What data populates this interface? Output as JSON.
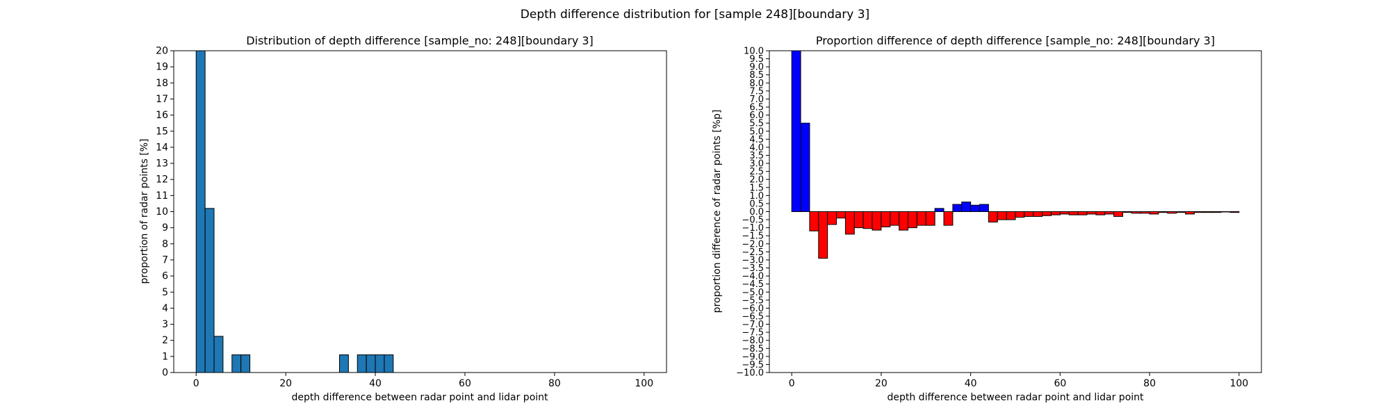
{
  "figure_title": "Depth difference distribution for [sample 248][boundary 3]",
  "colors": {
    "left_bar": "#1f77b4",
    "positive_bar": "#0000ff",
    "negative_bar": "#ff0000",
    "edge": "#000000"
  },
  "chart_data": [
    {
      "type": "bar",
      "title": "Distribution of depth difference [sample_no: 248][boundary 3]",
      "xlabel": "depth difference between radar point and lidar point",
      "ylabel": "proportion of radar points [%]",
      "bin_width": 2,
      "x": [
        0,
        2,
        4,
        8,
        10,
        32,
        36,
        38,
        40,
        42
      ],
      "values": [
        21.5,
        10.2,
        2.25,
        1.1,
        1.1,
        1.1,
        1.1,
        1.1,
        1.1,
        1.1
      ],
      "xlim": [
        -5,
        105
      ],
      "ylim": [
        0,
        20
      ],
      "xticks": [
        0,
        20,
        40,
        60,
        80,
        100
      ],
      "yticks": [
        0,
        1,
        2,
        3,
        4,
        5,
        6,
        7,
        8,
        9,
        10,
        11,
        12,
        13,
        14,
        15,
        16,
        17,
        18,
        19,
        20
      ],
      "grid": false,
      "legend": "none"
    },
    {
      "type": "bar",
      "title": "Proportion difference of depth difference [sample_no: 248][boundary 3]",
      "xlabel": "depth difference between radar point and lidar point",
      "ylabel": "proportion difference of radar points [%p]",
      "bin_width": 2,
      "x": [
        0,
        2,
        4,
        6,
        8,
        10,
        12,
        14,
        16,
        18,
        20,
        22,
        24,
        26,
        28,
        30,
        32,
        34,
        36,
        38,
        40,
        42,
        44,
        46,
        48,
        50,
        52,
        54,
        56,
        58,
        60,
        62,
        64,
        66,
        68,
        70,
        72,
        74,
        76,
        78,
        80,
        82,
        84,
        86,
        88,
        90,
        92,
        94,
        96,
        98
      ],
      "values": [
        12.5,
        5.5,
        -1.2,
        -2.9,
        -0.8,
        -0.4,
        -1.4,
        -1.0,
        -1.05,
        -1.15,
        -0.95,
        -0.85,
        -1.15,
        -1.0,
        -0.85,
        -0.85,
        0.2,
        -0.85,
        0.45,
        0.6,
        0.4,
        0.45,
        -0.65,
        -0.5,
        -0.5,
        -0.35,
        -0.3,
        -0.3,
        -0.25,
        -0.2,
        -0.15,
        -0.2,
        -0.2,
        -0.15,
        -0.2,
        -0.15,
        -0.3,
        -0.05,
        -0.1,
        -0.1,
        -0.15,
        -0.05,
        -0.1,
        -0.05,
        -0.15,
        -0.05,
        -0.05,
        -0.05,
        -0.02,
        -0.05
      ],
      "xlim": [
        -5,
        105
      ],
      "ylim": [
        -10,
        10
      ],
      "xticks": [
        0,
        20,
        40,
        60,
        80,
        100
      ],
      "yticks": [
        -10.0,
        -9.5,
        -9.0,
        -8.5,
        -8.0,
        -7.5,
        -7.0,
        -6.5,
        -6.0,
        -5.5,
        -5.0,
        -4.5,
        -4.0,
        -3.5,
        -3.0,
        -2.5,
        -2.0,
        -1.5,
        -1.0,
        -0.5,
        0.0,
        0.5,
        1.0,
        1.5,
        2.0,
        2.5,
        3.0,
        3.5,
        4.0,
        4.5,
        5.0,
        5.5,
        6.0,
        6.5,
        7.0,
        7.5,
        8.0,
        8.5,
        9.0,
        9.5,
        10.0
      ],
      "grid": false,
      "legend": "none"
    }
  ]
}
